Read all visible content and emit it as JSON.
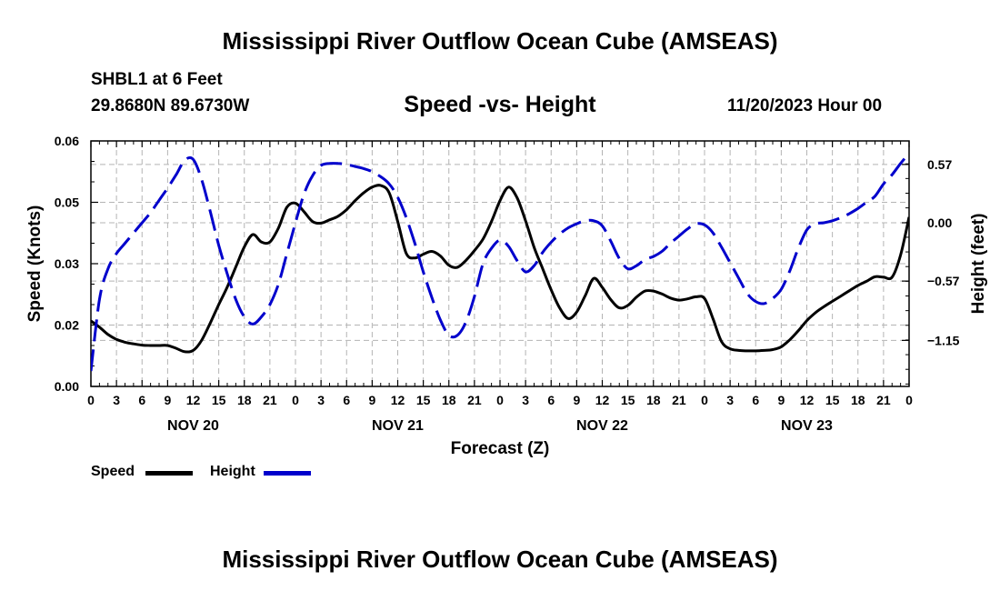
{
  "title": "Mississippi River Outflow Ocean Cube (AMSEAS)",
  "bottom_title": "Mississippi River Outflow Ocean Cube (AMSEAS)",
  "station": "SHBL1 at 6 Feet",
  "coords": "29.8680N  89.6730W",
  "subtitle": "Speed -vs- Height",
  "datestamp": "11/20/2023 Hour 00",
  "legend": {
    "speed": "Speed",
    "height": "Height"
  },
  "colors": {
    "speed": "#000000",
    "height": "#0000cc",
    "grid": "#b4b4b4"
  },
  "chart_data": {
    "type": "line",
    "title": "Speed -vs- Height",
    "xlabel": "Forecast (Z)",
    "ylabel": "Speed (Knots)",
    "y2label": "Height (feet)",
    "xlim": [
      0,
      96
    ],
    "ylim": [
      0,
      0.06
    ],
    "y2lim": [
      -1.6,
      0.8
    ],
    "x_ticks": [
      0,
      3,
      6,
      9,
      12,
      15,
      18,
      21,
      24,
      27,
      30,
      33,
      36,
      39,
      42,
      45,
      48,
      51,
      54,
      57,
      60,
      63,
      66,
      69,
      72,
      75,
      78,
      81,
      84,
      87,
      90,
      93,
      96
    ],
    "x_tick_labels": [
      "0",
      "3",
      "6",
      "9",
      "12",
      "15",
      "18",
      "21",
      "0",
      "3",
      "6",
      "9",
      "12",
      "15",
      "18",
      "21",
      "0",
      "3",
      "6",
      "9",
      "12",
      "15",
      "18",
      "21",
      "0",
      "3",
      "6",
      "9",
      "12",
      "15",
      "18",
      "21",
      "0"
    ],
    "day_labels": [
      {
        "x": 12,
        "label": "NOV 20"
      },
      {
        "x": 36,
        "label": "NOV 21"
      },
      {
        "x": 60,
        "label": "NOV 22"
      },
      {
        "x": 84,
        "label": "NOV 23"
      }
    ],
    "y_ticks": [
      0,
      0.015,
      0.03,
      0.045,
      0.06
    ],
    "y_tick_labels": [
      "0.00",
      "0.02",
      "0.03",
      "0.05",
      "0.06"
    ],
    "y2_ticks": [
      0.57,
      0.0,
      -0.57,
      -1.15
    ],
    "y2_tick_labels": [
      "0.57",
      "0.00",
      "−0.57",
      "−1.15"
    ],
    "series": [
      {
        "name": "Speed",
        "axis": "left",
        "style": "solid",
        "x": [
          0,
          1,
          2,
          3,
          4,
          5,
          6,
          7,
          8,
          9,
          10,
          11,
          12,
          13,
          14,
          15,
          16,
          17,
          18,
          19,
          20,
          21,
          22,
          23,
          24,
          25,
          26,
          27,
          28,
          29,
          30,
          31,
          32,
          33,
          34,
          35,
          36,
          37,
          38,
          39,
          40,
          41,
          42,
          43,
          44,
          45,
          46,
          47,
          48,
          49,
          50,
          51,
          52,
          53,
          54,
          55,
          56,
          57,
          58,
          59,
          60,
          61,
          62,
          63,
          64,
          65,
          66,
          67,
          68,
          69,
          70,
          71,
          72,
          73,
          74,
          75,
          76,
          77,
          78,
          79,
          80,
          81,
          82,
          83,
          84,
          85,
          86,
          87,
          88,
          89,
          90,
          91,
          92,
          93,
          94,
          95,
          96
        ],
        "values": [
          0.016,
          0.0145,
          0.0127,
          0.0115,
          0.0108,
          0.0104,
          0.0101,
          0.01,
          0.01,
          0.01,
          0.0093,
          0.0085,
          0.0088,
          0.0113,
          0.0155,
          0.02,
          0.0243,
          0.0292,
          0.0341,
          0.0371,
          0.0353,
          0.0353,
          0.0387,
          0.0438,
          0.0448,
          0.0427,
          0.0403,
          0.0399,
          0.0407,
          0.0416,
          0.0432,
          0.0454,
          0.0473,
          0.0487,
          0.0491,
          0.0473,
          0.0403,
          0.0325,
          0.0314,
          0.0323,
          0.033,
          0.0319,
          0.0296,
          0.0291,
          0.0308,
          0.0332,
          0.036,
          0.0403,
          0.0454,
          0.0487,
          0.0461,
          0.0405,
          0.034,
          0.0288,
          0.0236,
          0.0192,
          0.0166,
          0.0182,
          0.0222,
          0.0264,
          0.0242,
          0.0212,
          0.0192,
          0.0198,
          0.0218,
          0.0233,
          0.0233,
          0.0226,
          0.0216,
          0.0211,
          0.0214,
          0.0219,
          0.0215,
          0.0165,
          0.0109,
          0.0092,
          0.0088,
          0.0087,
          0.0087,
          0.0088,
          0.009,
          0.0097,
          0.0114,
          0.0136,
          0.0161,
          0.018,
          0.0195,
          0.0208,
          0.0221,
          0.0234,
          0.0247,
          0.0257,
          0.0268,
          0.0267,
          0.0267,
          0.0321,
          0.0414
        ]
      },
      {
        "name": "Height",
        "axis": "right",
        "style": "dashed",
        "x": [
          0,
          1,
          2,
          3,
          4,
          5,
          6,
          7,
          8,
          9,
          10,
          11,
          12,
          13,
          14,
          15,
          16,
          17,
          18,
          19,
          20,
          21,
          22,
          23,
          24,
          25,
          26,
          27,
          28,
          29,
          30,
          31,
          32,
          33,
          34,
          35,
          36,
          37,
          38,
          39,
          40,
          41,
          42,
          43,
          44,
          45,
          46,
          47,
          48,
          49,
          50,
          51,
          52,
          53,
          54,
          55,
          56,
          57,
          58,
          59,
          60,
          61,
          62,
          63,
          64,
          65,
          66,
          67,
          68,
          69,
          70,
          71,
          72,
          73,
          74,
          75,
          76,
          77,
          78,
          79,
          80,
          81,
          82,
          83,
          84,
          85,
          86,
          87,
          88,
          89,
          90,
          91,
          92,
          93,
          94,
          95,
          96
        ],
        "values": [
          -1.45,
          -0.75,
          -0.45,
          -0.3,
          -0.2,
          -0.1,
          0.0,
          0.1,
          0.22,
          0.34,
          0.47,
          0.61,
          0.62,
          0.42,
          0.11,
          -0.22,
          -0.5,
          -0.75,
          -0.92,
          -0.99,
          -0.92,
          -0.8,
          -0.6,
          -0.3,
          0.0,
          0.28,
          0.46,
          0.56,
          0.58,
          0.58,
          0.57,
          0.55,
          0.53,
          0.5,
          0.45,
          0.38,
          0.25,
          0.05,
          -0.2,
          -0.48,
          -0.73,
          -0.95,
          -1.1,
          -1.1,
          -0.97,
          -0.72,
          -0.4,
          -0.25,
          -0.17,
          -0.23,
          -0.37,
          -0.48,
          -0.42,
          -0.29,
          -0.19,
          -0.11,
          -0.05,
          -0.01,
          0.02,
          0.02,
          -0.03,
          -0.18,
          -0.35,
          -0.45,
          -0.42,
          -0.36,
          -0.33,
          -0.28,
          -0.2,
          -0.13,
          -0.06,
          -0.01,
          -0.02,
          -0.1,
          -0.24,
          -0.39,
          -0.54,
          -0.69,
          -0.77,
          -0.79,
          -0.74,
          -0.65,
          -0.47,
          -0.25,
          -0.07,
          -0.01,
          0.0,
          0.02,
          0.05,
          0.09,
          0.14,
          0.2,
          0.26,
          0.38,
          0.47,
          0.58,
          0.68
        ]
      }
    ]
  }
}
